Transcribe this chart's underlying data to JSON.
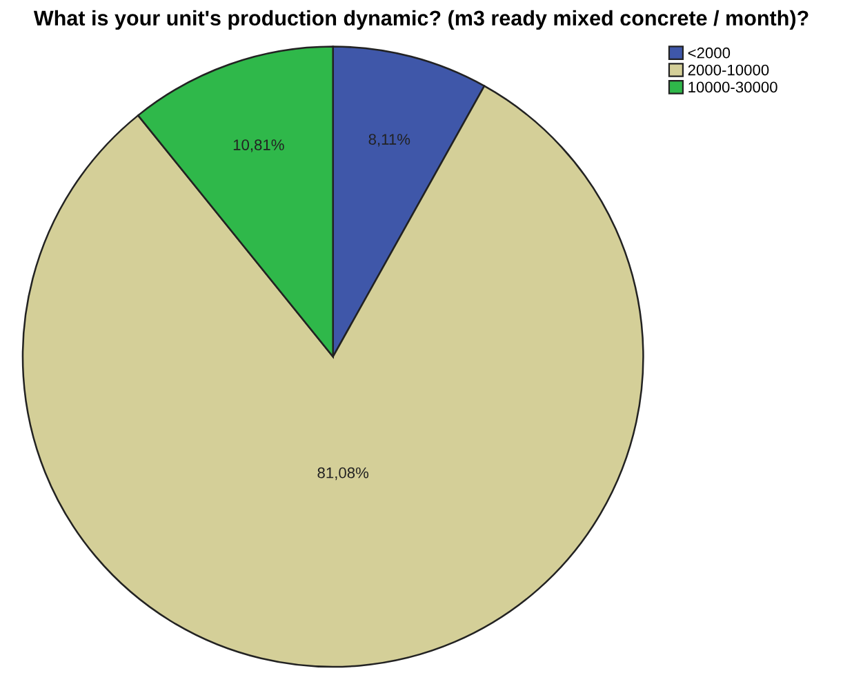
{
  "chart_data": {
    "type": "pie",
    "title": "What is your unit's production dynamic? (m3 ready mixed concrete / month)?",
    "categories": [
      "<2000",
      "2000-10000",
      "10000-30000"
    ],
    "values": [
      8.11,
      81.08,
      10.81
    ],
    "value_labels": [
      "8,11%",
      "81,08%",
      "10,81%"
    ],
    "colors": [
      "#3f57a9",
      "#d4cf98",
      "#2fb84a"
    ],
    "legend": "top right"
  }
}
